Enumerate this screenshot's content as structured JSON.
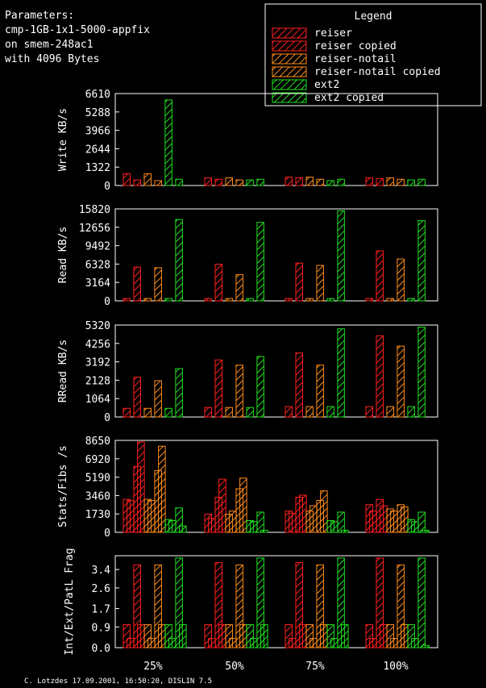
{
  "params": {
    "line1": "Parameters:",
    "line2": "cmp-1GB-1x1-5000-appfix",
    "line3": "on smem-248ac1",
    "line4": "with 4096 Bytes"
  },
  "legend": {
    "title": "Legend",
    "items": [
      {
        "label": "reiser",
        "color": "#ff2020"
      },
      {
        "label": "reiser copied",
        "color": "#ff2020"
      },
      {
        "label": "reiser-notail",
        "color": "#ff8c1a"
      },
      {
        "label": "reiser-notail copied",
        "color": "#ff8c1a"
      },
      {
        "label": "ext2",
        "color": "#20e020"
      },
      {
        "label": "ext2 copied",
        "color": "#20e020"
      }
    ]
  },
  "footer": "C. Lotzdes 17.09.2001, 16:50:20, DISLIN 7.5",
  "chart_data": [
    {
      "type": "bar",
      "ylabel": "Write KB/s",
      "yticks": [
        "0",
        "1322",
        "2644",
        "3966",
        "5288",
        "6610"
      ],
      "ylim": [
        0,
        6610
      ],
      "categories": [
        "25%",
        "50%",
        "75%",
        "100%"
      ],
      "series": [
        {
          "name": "reiser",
          "values": [
            [
              850
            ],
            [
              550
            ],
            [
              600
            ],
            [
              550
            ]
          ]
        },
        {
          "name": "reiser copied",
          "values": [
            [
              400
            ],
            [
              450
            ],
            [
              550
            ],
            [
              500
            ]
          ]
        },
        {
          "name": "reiser-notail",
          "values": [
            [
              850
            ],
            [
              550
            ],
            [
              600
            ],
            [
              550
            ]
          ]
        },
        {
          "name": "reiser-notail copied",
          "values": [
            [
              350
            ],
            [
              400
            ],
            [
              450
            ],
            [
              450
            ]
          ]
        },
        {
          "name": "ext2",
          "values": [
            [
              6150
            ],
            [
              400
            ],
            [
              350
            ],
            [
              400
            ]
          ]
        },
        {
          "name": "ext2 copied",
          "values": [
            [
              450
            ],
            [
              450
            ],
            [
              450
            ],
            [
              450
            ]
          ]
        }
      ]
    },
    {
      "type": "bar",
      "ylabel": "Read KB/s",
      "yticks": [
        "0",
        "3164",
        "6328",
        "9492",
        "12656",
        "15820"
      ],
      "ylim": [
        0,
        15820
      ],
      "categories": [
        "25%",
        "50%",
        "75%",
        "100%"
      ],
      "series": [
        {
          "name": "reiser",
          "values": [
            [
              400
            ],
            [
              400
            ],
            [
              400
            ],
            [
              400
            ]
          ]
        },
        {
          "name": "reiser copied",
          "values": [
            [
              5800
            ],
            [
              6300
            ],
            [
              6500
            ],
            [
              8600
            ]
          ]
        },
        {
          "name": "reiser-notail",
          "values": [
            [
              400
            ],
            [
              400
            ],
            [
              400
            ],
            [
              400
            ]
          ]
        },
        {
          "name": "reiser-notail copied",
          "values": [
            [
              5700
            ],
            [
              4500
            ],
            [
              6100
            ],
            [
              7200
            ]
          ]
        },
        {
          "name": "ext2",
          "values": [
            [
              400
            ],
            [
              400
            ],
            [
              400
            ],
            [
              400
            ]
          ]
        },
        {
          "name": "ext2 copied",
          "values": [
            [
              14000
            ],
            [
              13500
            ],
            [
              15500
            ],
            [
              13800
            ]
          ]
        }
      ]
    },
    {
      "type": "bar",
      "ylabel": "RRead KB/s",
      "yticks": [
        "0",
        "1064",
        "2128",
        "3192",
        "4256",
        "5320"
      ],
      "ylim": [
        0,
        5320
      ],
      "categories": [
        "25%",
        "50%",
        "75%",
        "100%"
      ],
      "series": [
        {
          "name": "reiser",
          "values": [
            [
              500
            ],
            [
              550
            ],
            [
              600
            ],
            [
              600
            ]
          ]
        },
        {
          "name": "reiser copied",
          "values": [
            [
              2300
            ],
            [
              3300
            ],
            [
              3700
            ],
            [
              4700
            ]
          ]
        },
        {
          "name": "reiser-notail",
          "values": [
            [
              500
            ],
            [
              550
            ],
            [
              600
            ],
            [
              600
            ]
          ]
        },
        {
          "name": "reiser-notail copied",
          "values": [
            [
              2100
            ],
            [
              3000
            ],
            [
              3000
            ],
            [
              4100
            ]
          ]
        },
        {
          "name": "ext2",
          "values": [
            [
              500
            ],
            [
              550
            ],
            [
              600
            ],
            [
              600
            ]
          ]
        },
        {
          "name": "ext2 copied",
          "values": [
            [
              2800
            ],
            [
              3500
            ],
            [
              5100
            ],
            [
              5200
            ]
          ]
        }
      ]
    },
    {
      "type": "bar",
      "ylabel": "Stats/Fibs /s",
      "yticks": [
        "0",
        "1730",
        "3460",
        "5190",
        "6920",
        "8650"
      ],
      "ylim": [
        0,
        8650
      ],
      "categories": [
        "25%",
        "50%",
        "75%",
        "100%"
      ],
      "series": [
        {
          "name": "reiser",
          "values": [
            [
              3100,
              3000
            ],
            [
              1700,
              1300
            ],
            [
              2000,
              1800
            ],
            [
              2600,
              2000
            ]
          ]
        },
        {
          "name": "reiser copied",
          "values": [
            [
              6200,
              8500
            ],
            [
              3300,
              5000
            ],
            [
              3300,
              3500
            ],
            [
              3100,
              2500
            ]
          ]
        },
        {
          "name": "reiser-notail",
          "values": [
            [
              3100,
              3000
            ],
            [
              1700,
              2000
            ],
            [
              2000,
              2500
            ],
            [
              2200,
              2000
            ]
          ]
        },
        {
          "name": "reiser-notail copied",
          "values": [
            [
              5800,
              8100
            ],
            [
              4100,
              5100
            ],
            [
              3000,
              3900
            ],
            [
              2600,
              2400
            ]
          ]
        },
        {
          "name": "ext2",
          "values": [
            [
              1200,
              1100
            ],
            [
              1100,
              1000
            ],
            [
              1100,
              1000
            ],
            [
              1200,
              1000
            ]
          ]
        },
        {
          "name": "ext2 copied",
          "values": [
            [
              2300,
              600
            ],
            [
              1900,
              200
            ],
            [
              1900,
              200
            ],
            [
              1900,
              200
            ]
          ]
        }
      ]
    },
    {
      "type": "bar",
      "ylabel": "Int/Ext/PatL Frag",
      "yticks": [
        "0.0",
        "0.9",
        "1.7",
        "2.6",
        "3.4"
      ],
      "ylim": [
        0,
        4.0
      ],
      "categories": [
        "25%",
        "50%",
        "75%",
        "100%"
      ],
      "series": [
        {
          "name": "reiser",
          "values": [
            [
              1.0,
              0.4
            ],
            [
              1.0,
              0.4
            ],
            [
              1.0,
              0.4
            ],
            [
              1.0,
              0.4
            ]
          ]
        },
        {
          "name": "reiser copied",
          "values": [
            [
              3.6,
              1.0
            ],
            [
              3.7,
              1.0
            ],
            [
              3.7,
              1.0
            ],
            [
              3.9,
              1.0
            ]
          ]
        },
        {
          "name": "reiser-notail",
          "values": [
            [
              1.0,
              0.4
            ],
            [
              1.0,
              0.4
            ],
            [
              1.0,
              0.4
            ],
            [
              1.0,
              0.4
            ]
          ]
        },
        {
          "name": "reiser-notail copied",
          "values": [
            [
              3.6,
              1.0
            ],
            [
              3.6,
              1.0
            ],
            [
              3.6,
              1.0
            ],
            [
              3.6,
              1.0
            ]
          ]
        },
        {
          "name": "ext2",
          "values": [
            [
              1.0,
              0.4
            ],
            [
              1.0,
              0.4
            ],
            [
              1.0,
              0.4
            ],
            [
              1.0,
              0.4
            ]
          ]
        },
        {
          "name": "ext2 copied",
          "values": [
            [
              3.9,
              1.0
            ],
            [
              3.9,
              1.0
            ],
            [
              3.9,
              1.0
            ],
            [
              3.9,
              0.1
            ]
          ]
        }
      ]
    }
  ]
}
